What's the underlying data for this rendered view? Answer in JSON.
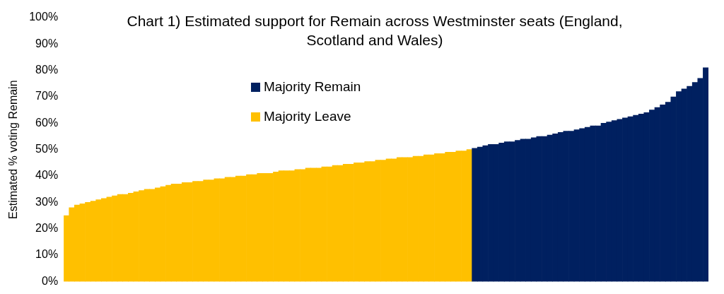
{
  "chart_data": {
    "type": "bar",
    "title": "Chart 1) Estimated support for Remain across Westminster seats (England, Scotland and Wales)",
    "ylabel": "Estimated % voting Remain",
    "categories": [
      null,
      null,
      null,
      null,
      null,
      null,
      null,
      null,
      null,
      null,
      null,
      null,
      null,
      null,
      null,
      null,
      null,
      null,
      null,
      null,
      null,
      null,
      null,
      null,
      null,
      null,
      null,
      null,
      null,
      null,
      null,
      null,
      null,
      null,
      null,
      null,
      null,
      null,
      null,
      null,
      null,
      null,
      null,
      null,
      null,
      null,
      null,
      null,
      null,
      null,
      null,
      null,
      null,
      null,
      null,
      null,
      null,
      null,
      null,
      null,
      null,
      null,
      null,
      null,
      null,
      null,
      null,
      null,
      null,
      null,
      null,
      null,
      null,
      null,
      null,
      null,
      null,
      null,
      null,
      null,
      null,
      null,
      null,
      null,
      null,
      null,
      null,
      null,
      null,
      null,
      null,
      null,
      null,
      null,
      null,
      null,
      null,
      null,
      null,
      null,
      null,
      null,
      null,
      null,
      null,
      null,
      null,
      null,
      null,
      null,
      null,
      null,
      null,
      null,
      null,
      null,
      null,
      null,
      null,
      null
    ],
    "series": [
      {
        "name": "Majority Remain",
        "color": "#002060",
        "values": [
          null,
          null,
          null,
          null,
          null,
          null,
          null,
          null,
          null,
          null,
          null,
          null,
          null,
          null,
          null,
          null,
          null,
          null,
          null,
          null,
          null,
          null,
          null,
          null,
          null,
          null,
          null,
          null,
          null,
          null,
          null,
          null,
          null,
          null,
          null,
          null,
          null,
          null,
          null,
          null,
          null,
          null,
          null,
          null,
          null,
          null,
          null,
          null,
          null,
          null,
          null,
          null,
          null,
          null,
          null,
          null,
          null,
          null,
          null,
          null,
          null,
          null,
          null,
          null,
          null,
          null,
          null,
          null,
          null,
          null,
          null,
          null,
          null,
          null,
          null,
          null,
          50.5,
          51,
          51.5,
          52,
          52,
          52.5,
          53,
          53,
          53.5,
          54,
          54,
          54.5,
          55,
          55,
          55.5,
          56,
          56.5,
          57,
          57,
          57.5,
          58,
          58.5,
          59,
          59,
          60,
          60.5,
          61,
          61.5,
          62,
          62.5,
          63,
          63.5,
          64,
          65,
          66,
          67,
          68,
          70,
          72,
          73,
          74,
          75.5,
          77,
          81
        ]
      },
      {
        "name": "Majority Leave",
        "color": "#ffc000",
        "values": [
          25,
          28,
          29,
          29.5,
          30,
          30.5,
          31,
          31.5,
          32,
          32.5,
          33,
          33,
          33.5,
          34,
          34.5,
          35,
          35,
          35.5,
          36,
          36.5,
          37,
          37,
          37.5,
          37.5,
          38,
          38,
          38.5,
          38.5,
          39,
          39,
          39.5,
          39.5,
          40,
          40,
          40.5,
          40.5,
          41,
          41,
          41,
          41.5,
          42,
          42,
          42,
          42.5,
          42.5,
          43,
          43,
          43,
          43.5,
          43.5,
          44,
          44,
          44.5,
          44.5,
          45,
          45,
          45.5,
          45.5,
          46,
          46,
          46.5,
          46.5,
          47,
          47,
          47,
          47.5,
          47.5,
          48,
          48,
          48.5,
          48.5,
          49,
          49,
          49.5,
          49.5,
          50,
          null,
          null,
          null,
          null,
          null,
          null,
          null,
          null,
          null,
          null,
          null,
          null,
          null,
          null,
          null,
          null,
          null,
          null,
          null,
          null,
          null,
          null,
          null,
          null,
          null,
          null,
          null,
          null,
          null,
          null,
          null,
          null,
          null,
          null,
          null,
          null,
          null,
          null,
          null,
          null,
          null,
          null,
          null,
          null
        ]
      }
    ],
    "ylim": [
      0,
      100
    ],
    "yticks": [
      {
        "value": 0,
        "label": "0%"
      },
      {
        "value": 10,
        "label": "10%"
      },
      {
        "value": 20,
        "label": "20%"
      },
      {
        "value": 30,
        "label": "30%"
      },
      {
        "value": 40,
        "label": "40%"
      },
      {
        "value": 50,
        "label": "50%"
      },
      {
        "value": 60,
        "label": "60%"
      },
      {
        "value": 70,
        "label": "70%"
      },
      {
        "value": 80,
        "label": "80%"
      },
      {
        "value": 90,
        "label": "90%"
      },
      {
        "value": 100,
        "label": "100%"
      }
    ],
    "legend": "top left",
    "grid": false,
    "stacked": true
  }
}
